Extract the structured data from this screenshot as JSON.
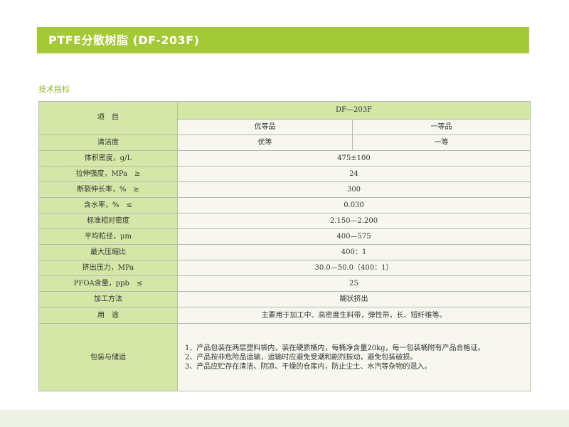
{
  "header": {
    "title": "PTFE分散树脂 (DF-203F)"
  },
  "section": {
    "title": "技术指标"
  },
  "table": {
    "item_header": "项　目",
    "product_header": "DF—203F",
    "grade_superior": "优等品",
    "grade_first": "一等品",
    "rows": [
      {
        "label": "清洁度",
        "superior": "优等",
        "first": "一等"
      },
      {
        "label": "体积密度，g/L",
        "value": "475±100"
      },
      {
        "label": "拉伸强度，MPa　≥",
        "value": "24"
      },
      {
        "label": "断裂伸长率，%　≥",
        "value": "300"
      },
      {
        "label": "含水率，%　≤",
        "value": "0.030"
      },
      {
        "label": "标准相对密度",
        "value": "2.150—2.200"
      },
      {
        "label": "平均粒径，μm",
        "value": "400—575"
      },
      {
        "label": "最大压缩比",
        "value": "400：1"
      },
      {
        "label": "挤出压力，MPa",
        "value": "30.0—50.0（400：1）"
      },
      {
        "label": "PFOA含量，ppb　≤",
        "value": "25"
      },
      {
        "label": "加工方法",
        "value": "糊状挤出"
      },
      {
        "label": "用　途",
        "value": "主要用于加工中、高密度生料带，弹性带，长、短纤维等。"
      }
    ],
    "packing": {
      "label": "包装与储运",
      "lines": [
        "1、产品包装在两层塑料袋内，装在硬质桶内，每桶净含量20kg，每一包装桶附有产品合格证。",
        "2、产品按非危险品运输，运输时应避免受潮和剧烈振动，避免包装破损。",
        "3、产品应贮存在清洁、阴凉、干燥的仓库内，防止尘土、水汽等杂物的混入。"
      ]
    }
  }
}
